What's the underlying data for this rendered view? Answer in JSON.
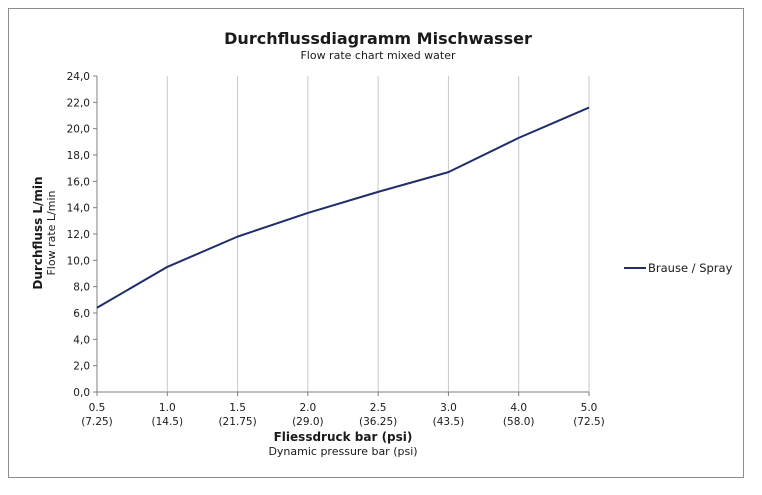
{
  "chart_data": {
    "type": "line",
    "title": "Durchflussdiagramm Mischwasser",
    "subtitle": "Flow rate chart mixed water",
    "xlabel": "Fliessdruck bar (psi)",
    "xlabel_sub": "Dynamic pressure bar (psi)",
    "ylabel": "Durchfluss L/min",
    "ylabel_sub": "Flow rate L/min",
    "categories": [
      "0.5",
      "1.0",
      "1.5",
      "2.0",
      "2.5",
      "3.0",
      "4.0",
      "5.0"
    ],
    "categories_psi": [
      "(7.25)",
      "(14.5)",
      "(21.75)",
      "(29.0)",
      "(36.25)",
      "(43.5)",
      "(58.0)",
      "(72.5)"
    ],
    "y_ticks": [
      "0,0",
      "2,0",
      "4,0",
      "6,0",
      "8,0",
      "10,0",
      "12,0",
      "14,0",
      "16,0",
      "18,0",
      "20,0",
      "22,0",
      "24,0"
    ],
    "ylim": [
      0,
      24
    ],
    "grid": "vertical",
    "legend_position": "right",
    "series": [
      {
        "name": "Brause / Spray",
        "color": "#1f2d6b",
        "values": [
          6.4,
          9.5,
          11.8,
          13.6,
          15.2,
          16.7,
          19.3,
          21.6
        ]
      }
    ]
  }
}
